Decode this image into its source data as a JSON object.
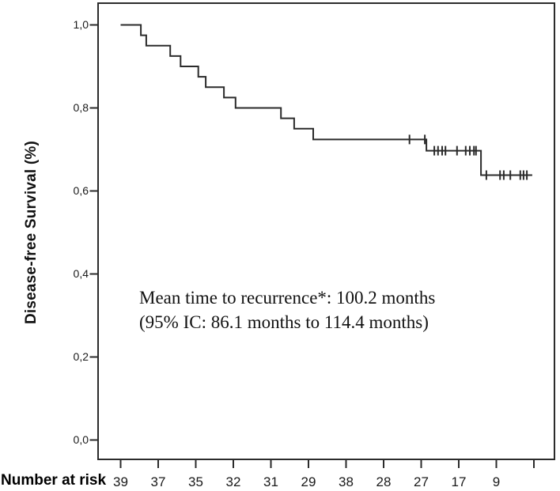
{
  "figure": {
    "background": "#ffffff",
    "axis_color": "#2b2b2b",
    "curve_color": "#2b2b2b",
    "text_color": "#1a1a1a"
  },
  "chart_data": {
    "type": "line",
    "subtype": "kaplan-meier-step-curve",
    "title": "",
    "xlabel": "",
    "ylabel": "Disease-free Survival (%)",
    "ylim": [
      0.0,
      1.0
    ],
    "grid": false,
    "legend": "none",
    "y_ticks": [
      {
        "label": "1,0",
        "value": 1.0
      },
      {
        "label": "0,8",
        "value": 0.8
      },
      {
        "label": "0,6",
        "value": 0.6
      },
      {
        "label": "0,4",
        "value": 0.4
      },
      {
        "label": "0,2",
        "value": 0.2
      },
      {
        "label": "0,0",
        "value": 0.0
      }
    ],
    "x_axis": {
      "tick_count": 12,
      "tick_labels_visible": false
    },
    "survival_steps": [
      {
        "x": 0.0,
        "s": 1.0
      },
      {
        "x": 0.049,
        "s": 0.975
      },
      {
        "x": 0.062,
        "s": 0.95
      },
      {
        "x": 0.12,
        "s": 0.925
      },
      {
        "x": 0.145,
        "s": 0.9
      },
      {
        "x": 0.188,
        "s": 0.875
      },
      {
        "x": 0.206,
        "s": 0.85
      },
      {
        "x": 0.25,
        "s": 0.825
      },
      {
        "x": 0.278,
        "s": 0.8
      },
      {
        "x": 0.388,
        "s": 0.775
      },
      {
        "x": 0.42,
        "s": 0.75
      },
      {
        "x": 0.466,
        "s": 0.724
      },
      {
        "x": 0.74,
        "s": 0.697
      },
      {
        "x": 0.872,
        "s": 0.638
      }
    ],
    "curve_end_x": 0.996,
    "censor_marks": [
      {
        "x": 0.699,
        "s": 0.724
      },
      {
        "x": 0.736,
        "s": 0.724
      },
      {
        "x": 0.759,
        "s": 0.697
      },
      {
        "x": 0.768,
        "s": 0.697
      },
      {
        "x": 0.778,
        "s": 0.697
      },
      {
        "x": 0.786,
        "s": 0.697
      },
      {
        "x": 0.814,
        "s": 0.697
      },
      {
        "x": 0.835,
        "s": 0.697
      },
      {
        "x": 0.845,
        "s": 0.697
      },
      {
        "x": 0.855,
        "s": 0.697
      },
      {
        "x": 0.86,
        "s": 0.697
      },
      {
        "x": 0.885,
        "s": 0.638
      },
      {
        "x": 0.918,
        "s": 0.638
      },
      {
        "x": 0.927,
        "s": 0.638
      },
      {
        "x": 0.943,
        "s": 0.638
      },
      {
        "x": 0.967,
        "s": 0.638
      },
      {
        "x": 0.975,
        "s": 0.638
      },
      {
        "x": 0.983,
        "s": 0.638
      }
    ],
    "annotation": {
      "line1": "Mean time to recurrence*: 100.2 months",
      "line2": "(95% IC: 86.1 months to 114.4 months)"
    },
    "number_at_risk": {
      "label": "Number at risk",
      "values": [
        "39",
        "37",
        "35",
        "32",
        "31",
        "29",
        "38",
        "28",
        "27",
        "17",
        "9"
      ]
    }
  }
}
